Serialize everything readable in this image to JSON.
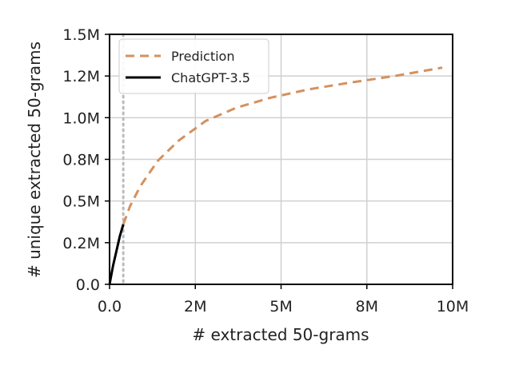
{
  "chart_data": {
    "type": "line",
    "xlabel": "# extracted 50-grams",
    "ylabel": "# unique extracted 50-grams",
    "xlim": [
      0,
      10000000
    ],
    "ylim": [
      0,
      1500000
    ],
    "x_ticks": [
      0,
      2500000,
      5000000,
      7500000,
      10000000
    ],
    "x_tick_labels": [
      "0.0",
      "2M",
      "5M",
      "8M",
      "10M"
    ],
    "y_ticks": [
      0,
      250000,
      500000,
      750000,
      1000000,
      1250000,
      1500000
    ],
    "y_tick_labels": [
      "0.0",
      "0.2M",
      "0.5M",
      "0.8M",
      "1.0M",
      "1.2M",
      "1.5M"
    ],
    "grid": true,
    "legend_position": "top-left",
    "vline": {
      "x": 400000,
      "color": "#bbbbbb",
      "style": "dotted"
    },
    "series": [
      {
        "name": "Prediction",
        "color": "#d4915f",
        "style": "dashed",
        "x": [
          400000,
          600000,
          900000,
          1400000,
          2000000,
          2800000,
          3700000,
          4700000,
          5800000,
          7000000,
          8300000,
          9700000
        ],
        "y": [
          360000,
          470000,
          590000,
          740000,
          860000,
          980000,
          1060000,
          1120000,
          1170000,
          1210000,
          1250000,
          1300000
        ]
      },
      {
        "name": "ChatGPT-3.5",
        "color": "#000000",
        "style": "solid",
        "x": [
          0,
          100000,
          200000,
          300000,
          400000
        ],
        "y": [
          0,
          110000,
          200000,
          290000,
          360000
        ]
      }
    ]
  }
}
